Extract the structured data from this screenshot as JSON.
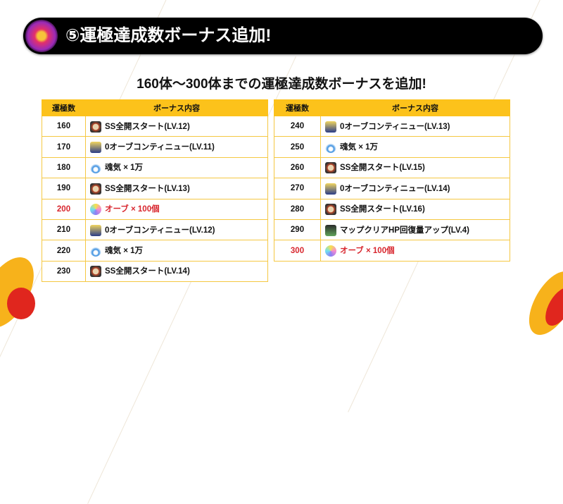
{
  "title": "⑤運極達成数ボーナス追加!",
  "subtitle": "160体～300体までの運極達成数ボーナスを追加!",
  "headers": {
    "count": "運極数",
    "bonus": "ボーナス内容"
  },
  "colors": {
    "header": "#fcc21b",
    "highlight": "#d8262e",
    "titlebar": "#000000"
  },
  "left_rows": [
    {
      "count": "160",
      "icon": "ss-icon",
      "bonus": "SS全開スタート(LV.12)"
    },
    {
      "count": "170",
      "icon": "continue-icon",
      "bonus": "0オーブコンティニュー(LV.11)"
    },
    {
      "count": "180",
      "icon": "soul-icon",
      "bonus": "魂気 × 1万"
    },
    {
      "count": "190",
      "icon": "ss-icon",
      "bonus": "SS全開スタート(LV.13)"
    },
    {
      "count": "200",
      "icon": "orb-icon",
      "bonus": "オーブ × 100個",
      "highlight": true
    },
    {
      "count": "210",
      "icon": "continue-icon",
      "bonus": "0オーブコンティニュー(LV.12)"
    },
    {
      "count": "220",
      "icon": "soul-icon",
      "bonus": "魂気 × 1万"
    },
    {
      "count": "230",
      "icon": "ss-icon",
      "bonus": "SS全開スタート(LV.14)"
    }
  ],
  "right_rows": [
    {
      "count": "240",
      "icon": "continue-icon",
      "bonus": "0オーブコンティニュー(LV.13)"
    },
    {
      "count": "250",
      "icon": "soul-icon",
      "bonus": "魂気 × 1万"
    },
    {
      "count": "260",
      "icon": "ss-icon",
      "bonus": "SS全開スタート(LV.15)"
    },
    {
      "count": "270",
      "icon": "continue-icon",
      "bonus": "0オーブコンティニュー(LV.14)"
    },
    {
      "count": "280",
      "icon": "ss-icon",
      "bonus": "SS全開スタート(LV.16)"
    },
    {
      "count": "290",
      "icon": "hp-icon",
      "bonus": "マップクリアHP回復量アップ(LV.4)"
    },
    {
      "count": "300",
      "icon": "orb-icon",
      "bonus": "オーブ × 100個",
      "highlight": true
    }
  ]
}
